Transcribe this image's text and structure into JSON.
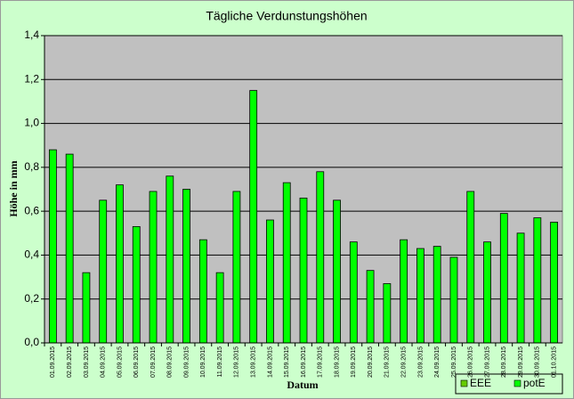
{
  "chart_data": {
    "type": "bar",
    "title": "Tägliche Verdunstungshöhen",
    "x_label": "Datum",
    "y_label": "Höhe in mm",
    "categories": [
      "01.09.2015",
      "02.09.2015",
      "03.09.2015",
      "04.09.2015",
      "05.09.2015",
      "06.09.2015",
      "07.09.2015",
      "08.09.2015",
      "09.09.2015",
      "10.09.2015",
      "11.09.2015",
      "12.09.2015",
      "13.09.2015",
      "14.09.2015",
      "15.09.2015",
      "16.09.2015",
      "17.09.2015",
      "18.09.2015",
      "19.09.2015",
      "20.09.2015",
      "21.09.2015",
      "22.09.2015",
      "23.09.2015",
      "24.09.2015",
      "25.09.2015",
      "26.09.2015",
      "27.09.2015",
      "28.09.2015",
      "29.09.2015",
      "30.09.2015",
      "01.10.2015"
    ],
    "series": [
      {
        "name": "potE",
        "color": "#00ff00",
        "values": [
          0.88,
          0.86,
          0.32,
          0.65,
          0.72,
          0.53,
          0.69,
          0.76,
          0.7,
          0.47,
          0.32,
          0.69,
          1.15,
          0.56,
          0.73,
          0.66,
          0.78,
          0.65,
          0.46,
          0.33,
          0.27,
          0.47,
          0.43,
          0.44,
          0.39,
          0.69,
          0.46,
          0.59,
          0.5,
          0.57,
          0.55
        ]
      }
    ],
    "legend": [
      {
        "name": "EEE",
        "color": "#66cc00"
      },
      {
        "name": "potE",
        "color": "#00ff00"
      }
    ],
    "ylim": [
      0,
      1.4
    ],
    "yticks": [
      {
        "value": 0,
        "label": "0,0"
      },
      {
        "value": 0.2,
        "label": "0,2"
      },
      {
        "value": 0.4,
        "label": "0,4"
      },
      {
        "value": 0.6,
        "label": "0,6"
      },
      {
        "value": 0.8,
        "label": "0,8"
      },
      {
        "value": 1.0,
        "label": "1,0"
      },
      {
        "value": 1.2,
        "label": "1,2"
      },
      {
        "value": 1.4,
        "label": "1,4"
      }
    ],
    "grid": true
  }
}
